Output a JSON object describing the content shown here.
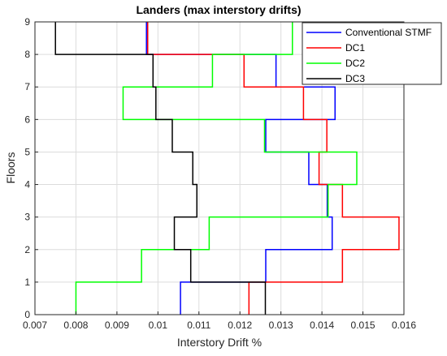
{
  "chart_data": {
    "type": "line",
    "title": "Landers (max interstory drifts)",
    "xlabel": "Interstory Drift %",
    "ylabel": "Floors",
    "xlim": [
      0.007,
      0.016
    ],
    "ylim": [
      0,
      9
    ],
    "xticks": [
      "0.007",
      "0.008",
      "0.009",
      "0.01",
      "0.011",
      "0.012",
      "0.013",
      "0.014",
      "0.015",
      "0.016"
    ],
    "yticks": [
      "0",
      "1",
      "2",
      "3",
      "4",
      "5",
      "6",
      "7",
      "8",
      "9"
    ],
    "grid": true,
    "legend_position": "top-right",
    "step_style": "story drift constant between floor levels",
    "series": [
      {
        "name": "Conventional STMF",
        "color": "#0000FF",
        "story_drifts": [
          0.01055,
          0.01263,
          0.01425,
          0.01413,
          0.01368,
          0.01263,
          0.01432,
          0.01288,
          0.00972
        ]
      },
      {
        "name": "DC1",
        "color": "#FF0000",
        "story_drifts": [
          0.01222,
          0.0145,
          0.01588,
          0.0145,
          0.01393,
          0.01412,
          0.01355,
          0.0121,
          0.00975
        ]
      },
      {
        "name": "DC2",
        "color": "#00FF00",
        "story_drifts": [
          0.008,
          0.0096,
          0.01125,
          0.01415,
          0.01485,
          0.0126,
          0.00915,
          0.01133,
          0.01328
        ]
      },
      {
        "name": "DC3",
        "color": "#000000",
        "story_drifts": [
          0.01262,
          0.0108,
          0.0104,
          0.01095,
          0.01085,
          0.01035,
          0.00995,
          0.00988,
          0.0075
        ]
      }
    ]
  }
}
